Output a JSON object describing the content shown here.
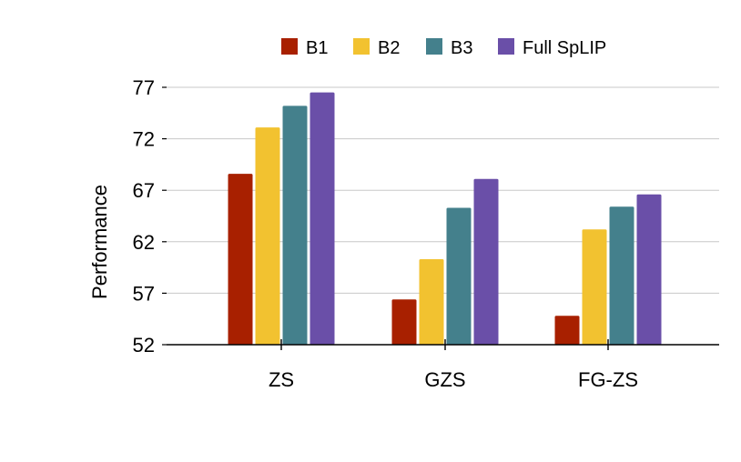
{
  "chart_data": {
    "type": "bar",
    "categories": [
      "ZS",
      "GZS",
      "FG-ZS"
    ],
    "series": [
      {
        "name": "B1",
        "color": "#a82000",
        "values": [
          68.6,
          56.4,
          54.8
        ]
      },
      {
        "name": "B2",
        "color": "#f2c230",
        "values": [
          73.1,
          60.3,
          63.2
        ]
      },
      {
        "name": "B3",
        "color": "#44808c",
        "values": [
          75.2,
          65.3,
          65.4
        ]
      },
      {
        "name": "Full SpLIP",
        "color": "#6a4fa8",
        "values": [
          76.5,
          68.1,
          66.6
        ]
      }
    ],
    "xlabel": "",
    "ylabel": "Performance",
    "ylim": [
      52,
      77
    ],
    "yticks": [
      52,
      57,
      62,
      67,
      72,
      77
    ],
    "grid": true,
    "legend_position": "top-center"
  }
}
